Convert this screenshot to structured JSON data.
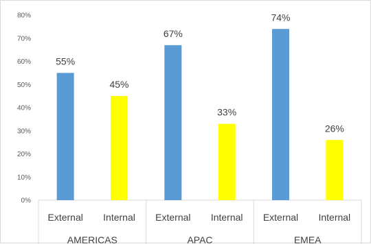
{
  "chart_data": {
    "type": "bar",
    "title": "",
    "xlabel": "",
    "ylabel": "",
    "ylim": [
      0,
      80
    ],
    "y_ticks": [
      "0%",
      "10%",
      "20%",
      "30%",
      "40%",
      "50%",
      "60%",
      "70%",
      "80%"
    ],
    "grid": false,
    "groups": [
      {
        "name": "AMERICAS",
        "bars": [
          {
            "category": "External",
            "value": 55,
            "label": "55%",
            "color": "#5b9bd5"
          },
          {
            "category": "Internal",
            "value": 45,
            "label": "45%",
            "color": "#ffff00"
          }
        ]
      },
      {
        "name": "APAC",
        "bars": [
          {
            "category": "External",
            "value": 67,
            "label": "67%",
            "color": "#5b9bd5"
          },
          {
            "category": "Internal",
            "value": 33,
            "label": "33%",
            "color": "#ffff00"
          }
        ]
      },
      {
        "name": "EMEA",
        "bars": [
          {
            "category": "External",
            "value": 74,
            "label": "74%",
            "color": "#5b9bd5"
          },
          {
            "category": "Internal",
            "value": 26,
            "label": "26%",
            "color": "#ffff00"
          }
        ]
      }
    ]
  }
}
